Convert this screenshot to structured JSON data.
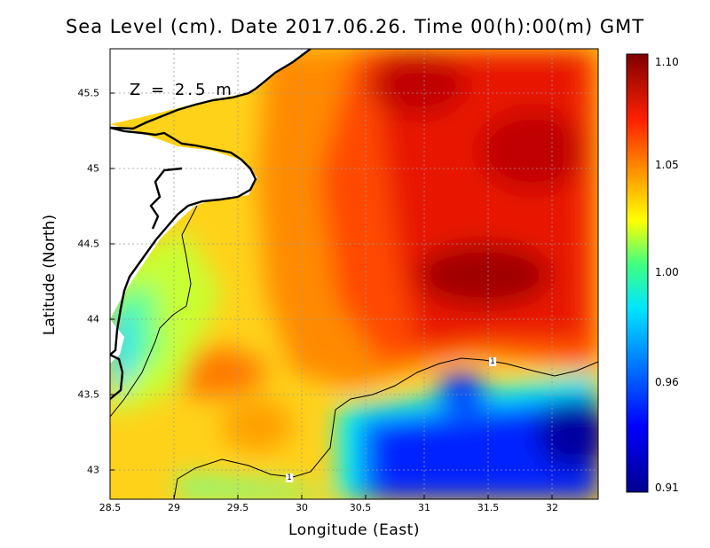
{
  "title": "Sea Level (cm). Date 2017.06.26. Time 00(h):00(m) GMT",
  "depth_label": "Z = 2.5 m",
  "chart_data": {
    "type": "heatmap",
    "title": "Sea Level (cm). Date 2017.06.26. Time 00(h):00(m) GMT",
    "xlabel": "Longitude (East)",
    "ylabel": "Latitude (North)",
    "xlim": [
      28.5,
      32.35
    ],
    "ylim": [
      42.8,
      45.8
    ],
    "x_ticks": [
      "28.5",
      "29",
      "29.5",
      "30",
      "30.5",
      "31",
      "31.5",
      "32"
    ],
    "y_ticks": [
      "43",
      "43.5",
      "44",
      "44.5",
      "45",
      "45.5"
    ],
    "grid": true,
    "colorbar": {
      "min": 0.91,
      "max": 1.1,
      "tick_labels": [
        "1.10",
        "1.05",
        "1.00",
        "0.96",
        "0.91"
      ],
      "colors": [
        "#00008f",
        "#0000ff",
        "#00ffff",
        "#ffff00",
        "#ff0000",
        "#800000"
      ]
    },
    "contour_label": "1",
    "field_description_values": {
      "max_center": {
        "lon": 31.4,
        "lat": 44.35,
        "value": 1.1
      },
      "min_center": {
        "lon": 32.2,
        "lat": 43.25,
        "value": 0.91
      },
      "coastal_low": {
        "lon": 28.6,
        "lat": 43.9,
        "value": 0.96
      }
    }
  }
}
